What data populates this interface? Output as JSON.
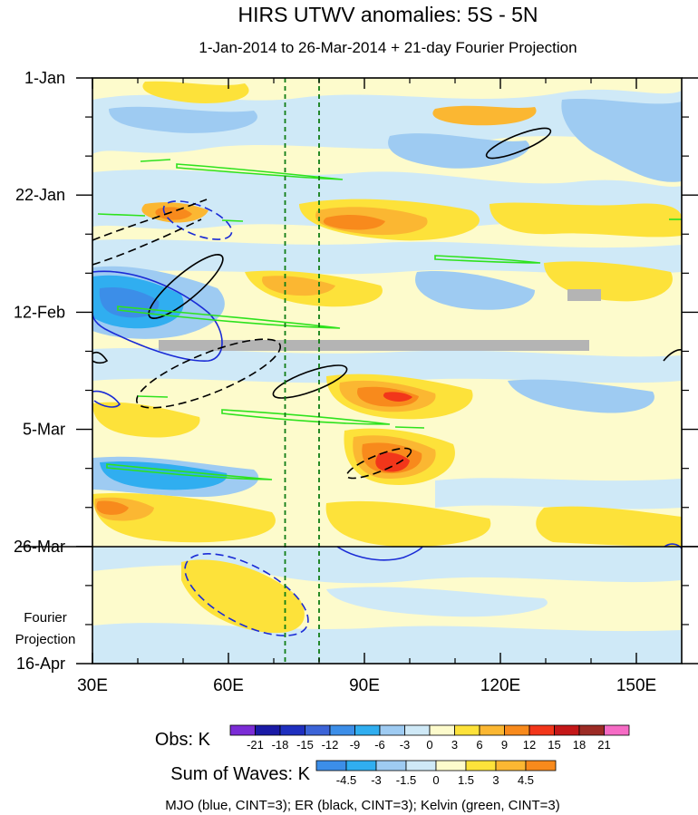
{
  "chart_data": {
    "type": "heatmap",
    "title": "HIRS UTWV anomalies: 5S - 5N",
    "subtitle": "1-Jan-2014 to 26-Mar-2014 + 21-day Fourier Projection",
    "x_ticks": [
      "30E",
      "60E",
      "90E",
      "120E",
      "150E"
    ],
    "y_ticks": [
      "1-Jan",
      "22-Jan",
      "12-Feb",
      "5-Mar",
      "26-Mar",
      "16-Apr"
    ],
    "x_range": [
      30,
      160
    ],
    "projection_label": [
      "Fourier",
      "Projection"
    ],
    "reference_lines_lon": [
      72.5,
      80
    ],
    "obs_colorbar": {
      "label": "Obs: K",
      "ticks": [
        "-21",
        "-18",
        "-15",
        "-12",
        "-9",
        "-6",
        "-3",
        "0",
        "3",
        "6",
        "9",
        "12",
        "15",
        "18",
        "21"
      ],
      "colors": [
        "#7b2cd6",
        "#1a1aa6",
        "#1f2fbf",
        "#3c64d8",
        "#3c8ee8",
        "#30aef0",
        "#9ecbf2",
        "#cfe9f7",
        "#fdfbcc",
        "#fde23a",
        "#fbb732",
        "#f88a1c",
        "#f2361a",
        "#c41718",
        "#9c2b25",
        "#f66bc5"
      ]
    },
    "waves_colorbar": {
      "label": "Sum of Waves: K",
      "ticks": [
        "-4.5",
        "-3",
        "-1.5",
        "0",
        "1.5",
        "3",
        "4.5"
      ],
      "colors": [
        "#3c8ee8",
        "#30aef0",
        "#9ecbf2",
        "#cfe9f7",
        "#fdfbcc",
        "#fde23a",
        "#fbb732",
        "#f88a1c"
      ]
    },
    "footer": "MJO (blue, CINT=3); ER (black, CINT=3); Kelvin (green, CINT=3)"
  }
}
